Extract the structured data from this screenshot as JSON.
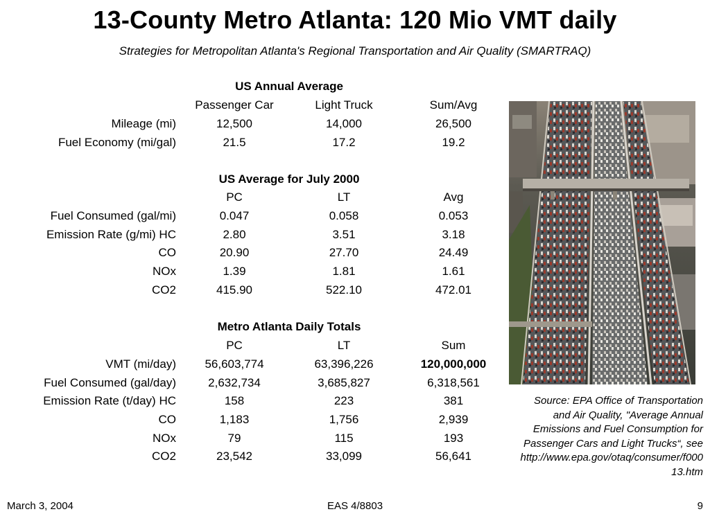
{
  "title": "13-County Metro Atlanta:  120 Mio VMT daily",
  "subtitle": "Strategies for Metropolitan Atlanta's Regional Transportation and Air Quality (SMARTRAQ)",
  "section1": {
    "heading": "US Annual Average",
    "columns": [
      "Passenger Car",
      "Light Truck",
      "Sum/Avg"
    ],
    "rows": [
      {
        "label": "Mileage (mi)",
        "values": [
          "12,500",
          "14,000",
          "26,500"
        ]
      },
      {
        "label": "Fuel Economy (mi/gal)",
        "values": [
          "21.5",
          "17.2",
          "19.2"
        ]
      }
    ]
  },
  "section2": {
    "heading": "US Average for July 2000",
    "columns": [
      "PC",
      "LT",
      "Avg"
    ],
    "rows": [
      {
        "label": "Fuel Consumed (gal/mi)",
        "values": [
          "0.047",
          "0.058",
          "0.053"
        ]
      },
      {
        "label": "Emission Rate (g/mi) HC",
        "values": [
          "2.80",
          "3.51",
          "3.18"
        ]
      },
      {
        "label": "CO",
        "values": [
          "20.90",
          "27.70",
          "24.49"
        ]
      },
      {
        "label": "NOx",
        "values": [
          "1.39",
          "1.81",
          "1.61"
        ]
      },
      {
        "label": "CO2",
        "values": [
          "415.90",
          "522.10",
          "472.01"
        ]
      }
    ]
  },
  "section3": {
    "heading": "Metro Atlanta Daily Totals",
    "columns": [
      "PC",
      "LT",
      "Sum"
    ],
    "rows": [
      {
        "label": "VMT (mi/day)",
        "values": [
          "56,603,774",
          "63,396,226",
          "120,000,000"
        ]
      },
      {
        "label": "Fuel Consumed (gal/day)",
        "values": [
          "2,632,734",
          "3,685,827",
          "6,318,561"
        ]
      },
      {
        "label": "Emission Rate (t/day) HC",
        "values": [
          "158",
          "223",
          "381"
        ]
      },
      {
        "label": "CO",
        "values": [
          "1,183",
          "1,756",
          "2,939"
        ]
      },
      {
        "label": "NOx",
        "values": [
          "79",
          "115",
          "193"
        ]
      },
      {
        "label": "CO2",
        "values": [
          "23,542",
          "33,099",
          "56,641"
        ]
      }
    ]
  },
  "source": {
    "lines": [
      "Source: EPA Office of Transportation",
      "and Air Quality, \"Average Annual",
      "Emissions and Fuel Consumption for",
      "Passenger Cars and Light Trucks“, see",
      "http://www.epa.gov/otaq/consumer/f000",
      "13.htm"
    ]
  },
  "footer": {
    "date": "March 3, 2004",
    "course": "EAS 4/8803",
    "page": "9"
  }
}
